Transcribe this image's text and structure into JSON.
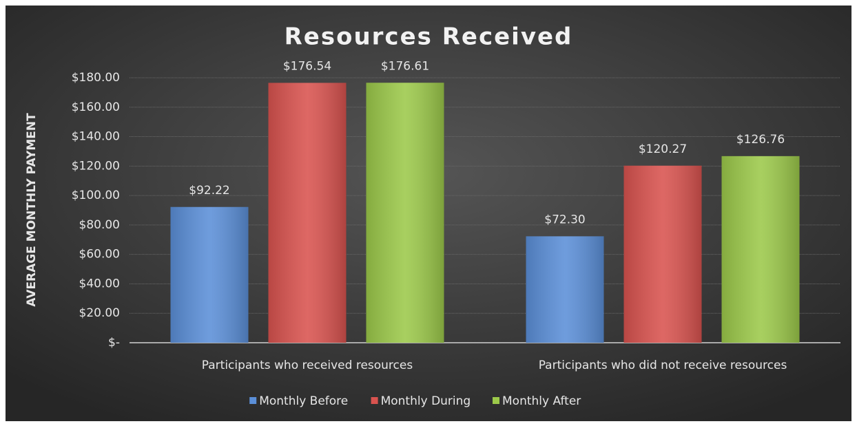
{
  "chart_data": {
    "type": "bar",
    "title": "Resources Received",
    "y_label": "AVERAGE MONTHLY PAYMENT",
    "categories": [
      "Participants who received resources",
      "Participants who did not receive resources"
    ],
    "series": [
      {
        "name": "Monthly Before",
        "color": "#5b8fd8",
        "values": [
          92.22,
          72.3
        ],
        "value_labels": [
          "$92.22",
          "$72.30"
        ]
      },
      {
        "name": "Monthly During",
        "color": "#d9534f",
        "values": [
          176.54,
          120.27
        ],
        "value_labels": [
          "$176.54",
          "$120.27"
        ]
      },
      {
        "name": "Monthly After",
        "color": "#9cc94a",
        "values": [
          176.61,
          126.76
        ],
        "value_labels": [
          "$176.61",
          "$126.76"
        ]
      }
    ],
    "ylim": [
      0,
      180
    ],
    "yticks": [
      {
        "value": 0,
        "label": "$-"
      },
      {
        "value": 20,
        "label": "$20.00"
      },
      {
        "value": 40,
        "label": "$40.00"
      },
      {
        "value": 60,
        "label": "$60.00"
      },
      {
        "value": 80,
        "label": "$80.00"
      },
      {
        "value": 100,
        "label": "$100.00"
      },
      {
        "value": 120,
        "label": "$120.00"
      },
      {
        "value": 140,
        "label": "$140.00"
      },
      {
        "value": 160,
        "label": "$160.00"
      },
      {
        "value": 180,
        "label": "$180.00"
      }
    ],
    "grid": true,
    "legend": "bottom"
  }
}
